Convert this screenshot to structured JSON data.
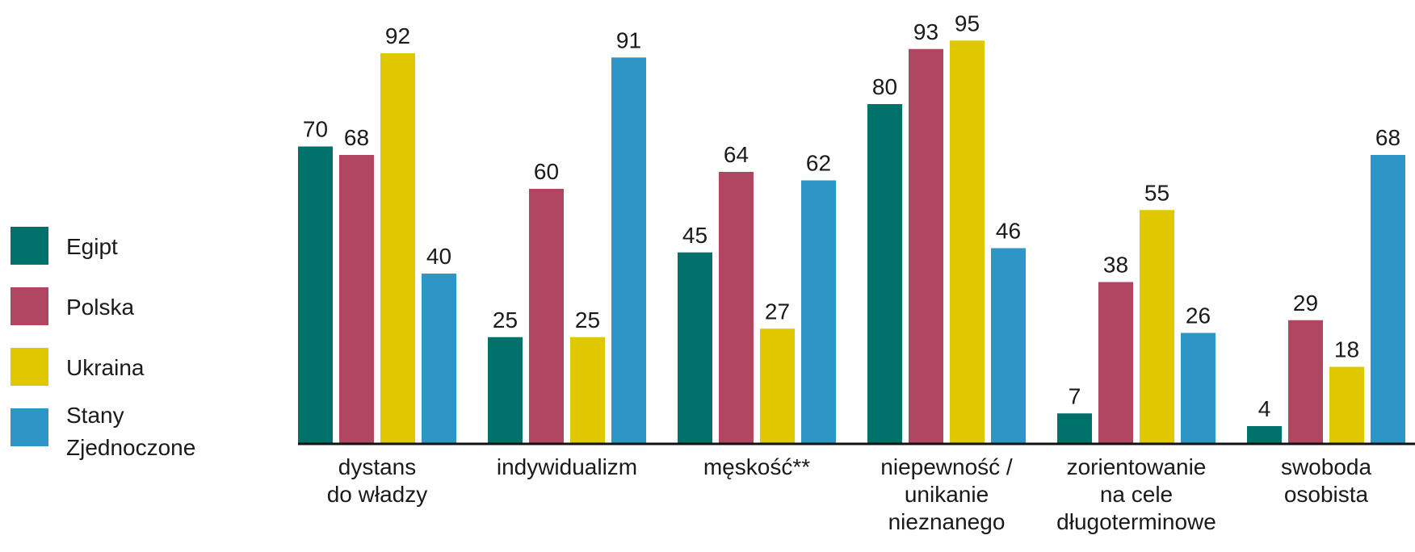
{
  "chart_data": {
    "type": "bar",
    "categories": [
      [
        "dystans",
        "do władzy"
      ],
      [
        "indywidualizm"
      ],
      [
        "męskość**"
      ],
      [
        "niepewność /",
        "unikanie",
        "nieznanego"
      ],
      [
        "zorientowanie",
        "na cele",
        "długoterminowe"
      ],
      [
        "swoboda",
        "osobista"
      ]
    ],
    "series": [
      {
        "name": [
          "Egipt"
        ],
        "color": "#00706a",
        "values": [
          70,
          25,
          45,
          80,
          7,
          4
        ]
      },
      {
        "name": [
          "Polska"
        ],
        "color": "#b04662",
        "values": [
          68,
          60,
          64,
          93,
          38,
          29
        ]
      },
      {
        "name": [
          "Ukraina"
        ],
        "color": "#dfc800",
        "values": [
          92,
          25,
          27,
          95,
          55,
          18
        ]
      },
      {
        "name": [
          "Stany",
          "Zjednoczone"
        ],
        "color": "#2e96c7",
        "values": [
          40,
          91,
          62,
          46,
          26,
          68
        ]
      }
    ],
    "ylim": [
      0,
      100
    ],
    "grid": false,
    "legend_position": "left",
    "title": "",
    "xlabel": "",
    "ylabel": ""
  }
}
